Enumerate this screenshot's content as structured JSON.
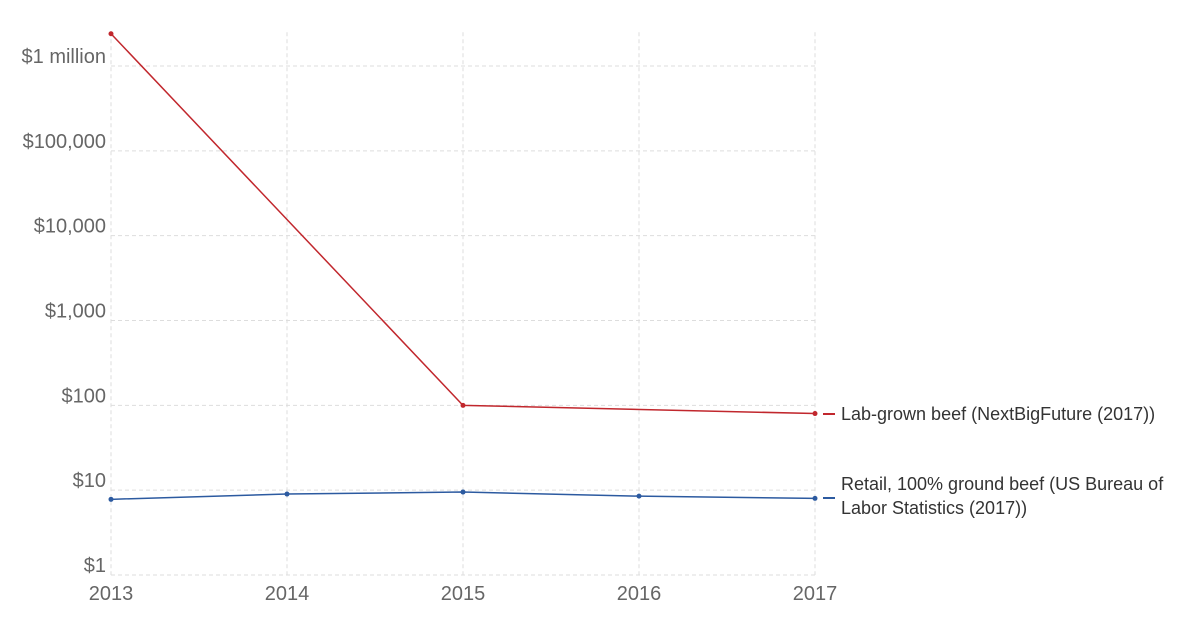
{
  "chart_data": {
    "type": "line",
    "title": "",
    "xlabel": "",
    "ylabel": "",
    "y_scale": "log",
    "ylim": [
      1,
      2500000
    ],
    "xlim": [
      2013,
      2017
    ],
    "grid": true,
    "legend_placement": "right-inline",
    "x_ticks": [
      {
        "value": 2013,
        "label": "2013"
      },
      {
        "value": 2014,
        "label": "2014"
      },
      {
        "value": 2015,
        "label": "2015"
      },
      {
        "value": 2016,
        "label": "2016"
      },
      {
        "value": 2017,
        "label": "2017"
      }
    ],
    "y_ticks": [
      {
        "value": 1,
        "label": "$1"
      },
      {
        "value": 10,
        "label": "$10"
      },
      {
        "value": 100,
        "label": "$100"
      },
      {
        "value": 1000,
        "label": "$1,000"
      },
      {
        "value": 10000,
        "label": "$10,000"
      },
      {
        "value": 100000,
        "label": "$100,000"
      },
      {
        "value": 1000000,
        "label": "$1 million"
      }
    ],
    "series": [
      {
        "name": "Lab-grown beef (NextBigFuture (2017))",
        "color": "#c1272d",
        "x": [
          2013,
          2015,
          2017
        ],
        "y": [
          2400000,
          100,
          80
        ]
      },
      {
        "name": "Retail, 100% ground beef (US Bureau of Labor Statistics (2017))",
        "color": "#2c5aa0",
        "x": [
          2013,
          2014,
          2015,
          2016,
          2017
        ],
        "y": [
          7.8,
          9.0,
          9.5,
          8.5,
          8.0
        ]
      }
    ]
  }
}
